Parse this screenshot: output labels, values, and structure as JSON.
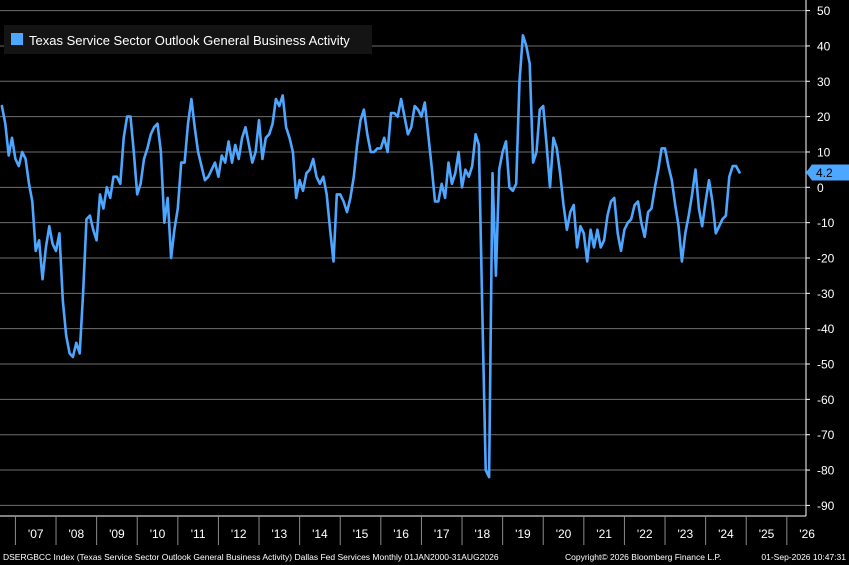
{
  "chart_data": {
    "type": "line",
    "legend": "Texas Service Sector Outlook General Business Activity",
    "legend_placement": "top-left",
    "series": [
      {
        "name": "Texas Service Sector Outlook General Business Activity",
        "color": "#4da6ff",
        "points": [
          [
            "2006-09",
            23
          ],
          [
            "2006-10",
            18
          ],
          [
            "2006-11",
            9
          ],
          [
            "2006-12",
            14
          ],
          [
            "2007-01",
            8
          ],
          [
            "2007-02",
            6
          ],
          [
            "2007-03",
            10
          ],
          [
            "2007-04",
            8
          ],
          [
            "2007-05",
            1
          ],
          [
            "2007-06",
            -4
          ],
          [
            "2007-07",
            -18
          ],
          [
            "2007-08",
            -15
          ],
          [
            "2007-09",
            -26
          ],
          [
            "2007-10",
            -17
          ],
          [
            "2007-11",
            -11
          ],
          [
            "2007-12",
            -16
          ],
          [
            "2008-01",
            -18
          ],
          [
            "2008-02",
            -13
          ],
          [
            "2008-03",
            -32
          ],
          [
            "2008-04",
            -42
          ],
          [
            "2008-05",
            -47
          ],
          [
            "2008-06",
            -48
          ],
          [
            "2008-07",
            -44
          ],
          [
            "2008-08",
            -47
          ],
          [
            "2008-09",
            -30
          ],
          [
            "2008-10",
            -9
          ],
          [
            "2008-11",
            -8
          ],
          [
            "2008-12",
            -12
          ],
          [
            "2009-01",
            -15
          ],
          [
            "2009-02",
            -2
          ],
          [
            "2009-03",
            -6
          ],
          [
            "2009-04",
            0
          ],
          [
            "2009-05",
            -3
          ],
          [
            "2009-06",
            3
          ],
          [
            "2009-07",
            3
          ],
          [
            "2009-08",
            1
          ],
          [
            "2009-09",
            14
          ],
          [
            "2009-10",
            20
          ],
          [
            "2009-11",
            20
          ],
          [
            "2009-12",
            10
          ],
          [
            "2010-01",
            -2
          ],
          [
            "2010-02",
            1
          ],
          [
            "2010-03",
            8
          ],
          [
            "2010-04",
            11
          ],
          [
            "2010-05",
            15
          ],
          [
            "2010-06",
            17
          ],
          [
            "2010-07",
            18
          ],
          [
            "2010-08",
            10
          ],
          [
            "2010-09",
            -10
          ],
          [
            "2010-10",
            -3
          ],
          [
            "2010-11",
            -20
          ],
          [
            "2010-12",
            -12
          ],
          [
            "2011-01",
            -6
          ],
          [
            "2011-02",
            7
          ],
          [
            "2011-03",
            7
          ],
          [
            "2011-04",
            18
          ],
          [
            "2011-05",
            25
          ],
          [
            "2011-06",
            17
          ],
          [
            "2011-07",
            10
          ],
          [
            "2011-08",
            6
          ],
          [
            "2011-09",
            2
          ],
          [
            "2011-10",
            3
          ],
          [
            "2011-11",
            5
          ],
          [
            "2011-12",
            7
          ],
          [
            "2012-01",
            3
          ],
          [
            "2012-02",
            9
          ],
          [
            "2012-03",
            7
          ],
          [
            "2012-04",
            13
          ],
          [
            "2012-05",
            7
          ],
          [
            "2012-06",
            12
          ],
          [
            "2012-07",
            8
          ],
          [
            "2012-08",
            14
          ],
          [
            "2012-09",
            17
          ],
          [
            "2012-10",
            12
          ],
          [
            "2012-11",
            7
          ],
          [
            "2012-12",
            10
          ],
          [
            "2013-01",
            19
          ],
          [
            "2013-02",
            8
          ],
          [
            "2013-03",
            14
          ],
          [
            "2013-04",
            15
          ],
          [
            "2013-05",
            18
          ],
          [
            "2013-06",
            25
          ],
          [
            "2013-07",
            23
          ],
          [
            "2013-08",
            26
          ],
          [
            "2013-09",
            17
          ],
          [
            "2013-10",
            14
          ],
          [
            "2013-11",
            10
          ],
          [
            "2013-12",
            -3
          ],
          [
            "2014-01",
            2
          ],
          [
            "2014-02",
            -1
          ],
          [
            "2014-03",
            4
          ],
          [
            "2014-04",
            5
          ],
          [
            "2014-05",
            8
          ],
          [
            "2014-06",
            3
          ],
          [
            "2014-07",
            1
          ],
          [
            "2014-08",
            3
          ],
          [
            "2014-09",
            -2
          ],
          [
            "2014-10",
            -12
          ],
          [
            "2014-11",
            -21
          ],
          [
            "2014-12",
            -2
          ],
          [
            "2015-01",
            -2
          ],
          [
            "2015-02",
            -4
          ],
          [
            "2015-03",
            -7
          ],
          [
            "2015-04",
            -3
          ],
          [
            "2015-05",
            3
          ],
          [
            "2015-06",
            12
          ],
          [
            "2015-07",
            19
          ],
          [
            "2015-08",
            22
          ],
          [
            "2015-09",
            15
          ],
          [
            "2015-10",
            10
          ],
          [
            "2015-11",
            10
          ],
          [
            "2015-12",
            11
          ],
          [
            "2016-01",
            11
          ],
          [
            "2016-02",
            14
          ],
          [
            "2016-03",
            10
          ],
          [
            "2016-04",
            21
          ],
          [
            "2016-05",
            21
          ],
          [
            "2016-06",
            20
          ],
          [
            "2016-07",
            25
          ],
          [
            "2016-08",
            20
          ],
          [
            "2016-09",
            15
          ],
          [
            "2016-10",
            17
          ],
          [
            "2016-11",
            23
          ],
          [
            "2016-12",
            22
          ],
          [
            "2017-01",
            20
          ],
          [
            "2017-02",
            24
          ],
          [
            "2017-03",
            15
          ],
          [
            "2017-04",
            6
          ],
          [
            "2017-05",
            -4
          ],
          [
            "2017-06",
            -4
          ],
          [
            "2017-07",
            1
          ],
          [
            "2017-08",
            -3
          ],
          [
            "2017-09",
            7
          ],
          [
            "2017-10",
            1
          ],
          [
            "2017-11",
            4
          ],
          [
            "2017-12",
            10
          ],
          [
            "2018-01",
            0
          ],
          [
            "2018-02",
            5
          ],
          [
            "2018-03",
            3
          ],
          [
            "2018-04",
            6
          ],
          [
            "2018-05",
            15
          ],
          [
            "2018-06",
            12
          ],
          [
            "2018-07",
            -35
          ],
          [
            "2018-08",
            -80
          ],
          [
            "2018-09",
            -82
          ],
          [
            "2018-10",
            4
          ],
          [
            "2018-11",
            -25
          ],
          [
            "2018-12",
            5
          ],
          [
            "2019-01",
            10
          ],
          [
            "2019-02",
            13
          ],
          [
            "2019-03",
            0
          ],
          [
            "2019-04",
            -1
          ],
          [
            "2019-05",
            1
          ],
          [
            "2019-06",
            30
          ],
          [
            "2019-07",
            43
          ],
          [
            "2019-08",
            40
          ],
          [
            "2019-09",
            35
          ],
          [
            "2019-10",
            7
          ],
          [
            "2019-11",
            10
          ],
          [
            "2019-12",
            22
          ],
          [
            "2020-01",
            23
          ],
          [
            "2020-02",
            12
          ],
          [
            "2020-03",
            0
          ],
          [
            "2020-04",
            14
          ],
          [
            "2020-05",
            11
          ],
          [
            "2020-06",
            4
          ],
          [
            "2020-07",
            -5
          ],
          [
            "2020-08",
            -12
          ],
          [
            "2020-09",
            -7
          ],
          [
            "2020-10",
            -5
          ],
          [
            "2020-11",
            -17
          ],
          [
            "2020-12",
            -11
          ],
          [
            "2021-01",
            -13
          ],
          [
            "2021-02",
            -21
          ],
          [
            "2021-03",
            -12
          ],
          [
            "2021-04",
            -17
          ],
          [
            "2021-05",
            -12
          ],
          [
            "2021-06",
            -17
          ],
          [
            "2021-07",
            -15
          ],
          [
            "2021-08",
            -8
          ],
          [
            "2021-09",
            -4
          ],
          [
            "2021-10",
            -3
          ],
          [
            "2021-11",
            -13
          ],
          [
            "2021-12",
            -18
          ],
          [
            "2022-01",
            -12
          ],
          [
            "2022-02",
            -10
          ],
          [
            "2022-03",
            -9
          ],
          [
            "2022-04",
            -5
          ],
          [
            "2022-05",
            -4
          ],
          [
            "2022-06",
            -10
          ],
          [
            "2022-07",
            -14
          ],
          [
            "2022-08",
            -7
          ],
          [
            "2022-09",
            -6
          ],
          [
            "2022-10",
            0
          ],
          [
            "2022-11",
            5
          ],
          [
            "2022-12",
            11
          ],
          [
            "2023-01",
            11
          ],
          [
            "2023-02",
            6
          ],
          [
            "2023-03",
            2
          ],
          [
            "2023-04",
            -5
          ],
          [
            "2023-05",
            -11
          ],
          [
            "2023-06",
            -21
          ],
          [
            "2023-07",
            -13
          ],
          [
            "2023-08",
            -8
          ],
          [
            "2023-09",
            -2
          ],
          [
            "2023-10",
            5
          ],
          [
            "2023-11",
            -6
          ],
          [
            "2023-12",
            -11
          ],
          [
            "2024-01",
            -4
          ],
          [
            "2024-02",
            2
          ],
          [
            "2024-03",
            -4
          ],
          [
            "2024-04",
            -13
          ],
          [
            "2024-05",
            -11
          ],
          [
            "2024-06",
            -9
          ],
          [
            "2024-07",
            -8
          ],
          [
            "2024-08",
            3
          ],
          [
            "2024-09",
            6
          ],
          [
            "2024-10",
            6
          ],
          [
            "2024-11",
            4.2
          ]
        ]
      }
    ],
    "x_tick_labels": [
      "'07",
      "'08",
      "'09",
      "'10",
      "'11",
      "'12",
      "'13",
      "'14",
      "'15",
      "'16",
      "'17",
      "'18",
      "'19",
      "'20",
      "'21",
      "'22",
      "'23",
      "'24",
      "'25",
      "'26"
    ],
    "y_ticks": [
      50,
      40,
      30,
      20,
      10,
      0,
      -10,
      -20,
      -30,
      -40,
      -50,
      -60,
      -70,
      -80,
      -90
    ],
    "ylim": [
      -93,
      53
    ],
    "grid": "horizontal",
    "y_axis_side": "right",
    "last_value": 4.2,
    "last_value_label": "4.2"
  },
  "footer": {
    "left": "DSERGBCC Index (Texas Service Sector Outlook General Business Activity) Dallas Fed Services Monthly 01JAN2000-31AUG2026",
    "right": "Copyright© 2026 Bloomberg Finance L.P.",
    "timestamp": "01-Sep-2026 10:47:31"
  },
  "colors": {
    "background": "#000000",
    "grid": "#6e6e6e",
    "axis": "#ffffff",
    "line": "#4da6ff",
    "legend_bg": "#141414",
    "last_label_bg": "#4da6ff"
  }
}
